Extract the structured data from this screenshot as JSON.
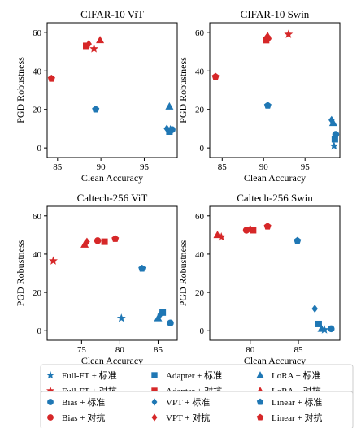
{
  "colors": {
    "standard": "#1f77b4",
    "adversarial": "#d62728"
  },
  "legend": {
    "box1": [
      {
        "label": "Full-FT + 标准",
        "marker": "star",
        "color": "#1f77b4"
      },
      {
        "label": "Adapter + 标准",
        "marker": "square",
        "color": "#1f77b4"
      },
      {
        "label": "LoRA + 标准",
        "marker": "triangle",
        "color": "#1f77b4"
      },
      {
        "label": "Full-FT + 对抗",
        "marker": "star",
        "color": "#d62728"
      },
      {
        "label": "Adapter + 对抗",
        "marker": "square",
        "color": "#d62728"
      },
      {
        "label": "LoRA + 对抗",
        "marker": "triangle",
        "color": "#d62728"
      }
    ],
    "box2": [
      {
        "label": "Bias + 标准",
        "marker": "circle",
        "color": "#1f77b4"
      },
      {
        "label": "VPT + 标准",
        "marker": "diamond",
        "color": "#1f77b4"
      },
      {
        "label": "Linear + 标准",
        "marker": "pentagon",
        "color": "#1f77b4"
      },
      {
        "label": "Bias + 对抗",
        "marker": "circle",
        "color": "#d62728"
      },
      {
        "label": "VPT + 对抗",
        "marker": "diamond",
        "color": "#d62728"
      },
      {
        "label": "Linear + 对抗",
        "marker": "pentagon",
        "color": "#d62728"
      }
    ]
  },
  "chart_data": [
    {
      "type": "scatter",
      "title": "CIFAR-10 ViT",
      "xlabel": "Clean Accuracy",
      "ylabel": "PGD Robustness",
      "xlim": [
        83.8,
        98.8
      ],
      "ylim": [
        -5,
        65
      ],
      "xticks": [
        85,
        90,
        95
      ],
      "yticks": [
        0,
        20,
        40,
        60
      ],
      "points": [
        {
          "method": "Linear",
          "training": "对抗",
          "marker": "pentagon",
          "color": "#d62728",
          "x": 84.3,
          "y": 36
        },
        {
          "method": "Adapter",
          "training": "对抗",
          "marker": "square",
          "color": "#d62728",
          "x": 88.3,
          "y": 53
        },
        {
          "method": "VPT",
          "training": "对抗",
          "marker": "diamond",
          "color": "#d62728",
          "x": 88.6,
          "y": 54
        },
        {
          "method": "Full-FT",
          "training": "对抗",
          "marker": "star",
          "color": "#d62728",
          "x": 89.2,
          "y": 51.5
        },
        {
          "method": "LoRA",
          "training": "对抗",
          "marker": "triangle",
          "color": "#d62728",
          "x": 89.9,
          "y": 56
        },
        {
          "method": "Linear",
          "training": "标准",
          "marker": "pentagon",
          "color": "#1f77b4",
          "x": 89.4,
          "y": 20
        },
        {
          "method": "LoRA",
          "training": "标准",
          "marker": "triangle",
          "color": "#1f77b4",
          "x": 97.9,
          "y": 21.5
        },
        {
          "method": "VPT",
          "training": "标准",
          "marker": "diamond",
          "color": "#1f77b4",
          "x": 97.6,
          "y": 10
        },
        {
          "method": "Adapter",
          "training": "标准",
          "marker": "square",
          "color": "#1f77b4",
          "x": 97.9,
          "y": 8.5
        },
        {
          "method": "Full-FT",
          "training": "标准",
          "marker": "star",
          "color": "#1f77b4",
          "x": 98.0,
          "y": 9.5
        },
        {
          "method": "Bias",
          "training": "标准",
          "marker": "circle",
          "color": "#1f77b4",
          "x": 98.2,
          "y": 9.5
        }
      ]
    },
    {
      "type": "scatter",
      "title": "CIFAR-10 Swin",
      "xlabel": "Clean Accuracy",
      "ylabel": "PGD Robustness",
      "xlim": [
        83.5,
        99.2
      ],
      "ylim": [
        -5,
        65
      ],
      "xticks": [
        85,
        90,
        95
      ],
      "yticks": [
        0,
        20,
        40,
        60
      ],
      "points": [
        {
          "method": "Linear",
          "training": "对抗",
          "marker": "pentagon",
          "color": "#d62728",
          "x": 84.2,
          "y": 37
        },
        {
          "method": "Adapter",
          "training": "对抗",
          "marker": "square",
          "color": "#d62728",
          "x": 90.3,
          "y": 56
        },
        {
          "method": "VPT",
          "training": "对抗",
          "marker": "diamond",
          "color": "#d62728",
          "x": 90.4,
          "y": 57.5
        },
        {
          "method": "Bias",
          "training": "对抗",
          "marker": "circle",
          "color": "#d62728",
          "x": 90.5,
          "y": 57
        },
        {
          "method": "LoRA",
          "training": "对抗",
          "marker": "triangle",
          "color": "#d62728",
          "x": 90.5,
          "y": 58
        },
        {
          "method": "Full-FT",
          "training": "对抗",
          "marker": "star",
          "color": "#d62728",
          "x": 93.0,
          "y": 59
        },
        {
          "method": "Linear",
          "training": "标准",
          "marker": "pentagon",
          "color": "#1f77b4",
          "x": 90.5,
          "y": 22
        },
        {
          "method": "VPT",
          "training": "标准",
          "marker": "diamond",
          "color": "#1f77b4",
          "x": 98.2,
          "y": 14.5
        },
        {
          "method": "LoRA",
          "training": "标准",
          "marker": "triangle",
          "color": "#1f77b4",
          "x": 98.4,
          "y": 13
        },
        {
          "method": "Bias",
          "training": "标准",
          "marker": "circle",
          "color": "#1f77b4",
          "x": 98.7,
          "y": 7
        },
        {
          "method": "Adapter",
          "training": "标准",
          "marker": "square",
          "color": "#1f77b4",
          "x": 98.6,
          "y": 4.5
        },
        {
          "method": "Full-FT",
          "training": "标准",
          "marker": "star",
          "color": "#1f77b4",
          "x": 98.5,
          "y": 1
        }
      ]
    },
    {
      "type": "scatter",
      "title": "Caltech-256 ViT",
      "xlabel": "Clean Accuracy",
      "ylabel": "PGD Robustness",
      "xlim": [
        70.5,
        87.5
      ],
      "ylim": [
        -5,
        65
      ],
      "xticks": [
        75,
        80,
        85
      ],
      "yticks": [
        0,
        20,
        40,
        60
      ],
      "points": [
        {
          "method": "Full-FT",
          "training": "对抗",
          "marker": "star",
          "color": "#d62728",
          "x": 71.3,
          "y": 36.5
        },
        {
          "method": "LoRA",
          "training": "对抗",
          "marker": "triangle",
          "color": "#d62728",
          "x": 75.4,
          "y": 45
        },
        {
          "method": "VPT",
          "training": "对抗",
          "marker": "diamond",
          "color": "#d62728",
          "x": 75.7,
          "y": 46.5
        },
        {
          "method": "Bias",
          "training": "对抗",
          "marker": "circle",
          "color": "#d62728",
          "x": 77.1,
          "y": 47
        },
        {
          "method": "Adapter",
          "training": "对抗",
          "marker": "square",
          "color": "#d62728",
          "x": 78.0,
          "y": 46.5
        },
        {
          "method": "Linear",
          "training": "对抗",
          "marker": "pentagon",
          "color": "#d62728",
          "x": 79.4,
          "y": 48
        },
        {
          "method": "Linear",
          "training": "标准",
          "marker": "pentagon",
          "color": "#1f77b4",
          "x": 82.9,
          "y": 32.5
        },
        {
          "method": "Full-FT",
          "training": "标准",
          "marker": "star",
          "color": "#1f77b4",
          "x": 80.2,
          "y": 6.5
        },
        {
          "method": "LoRA",
          "training": "标准",
          "marker": "triangle",
          "color": "#1f77b4",
          "x": 85.0,
          "y": 6.5
        },
        {
          "method": "VPT",
          "training": "标准",
          "marker": "diamond",
          "color": "#1f77b4",
          "x": 85.3,
          "y": 8.5
        },
        {
          "method": "Adapter",
          "training": "标准",
          "marker": "square",
          "color": "#1f77b4",
          "x": 85.6,
          "y": 9.5
        },
        {
          "method": "Bias",
          "training": "标准",
          "marker": "circle",
          "color": "#1f77b4",
          "x": 86.6,
          "y": 4
        }
      ]
    },
    {
      "type": "scatter",
      "title": "Caltech-256 Swin",
      "xlabel": "Clean Accuracy",
      "ylabel": "PGD Robustness",
      "xlim": [
        75.8,
        89.3
      ],
      "ylim": [
        -5,
        65
      ],
      "xticks": [
        80,
        85
      ],
      "yticks": [
        0,
        20,
        40,
        60
      ],
      "points": [
        {
          "method": "LoRA",
          "training": "对抗",
          "marker": "triangle",
          "color": "#d62728",
          "x": 76.6,
          "y": 50
        },
        {
          "method": "Full-FT",
          "training": "对抗",
          "marker": "star",
          "color": "#d62728",
          "x": 77.0,
          "y": 49
        },
        {
          "method": "Bias",
          "training": "对抗",
          "marker": "circle",
          "color": "#d62728",
          "x": 79.6,
          "y": 52.5
        },
        {
          "method": "VPT",
          "training": "对抗",
          "marker": "diamond",
          "color": "#d62728",
          "x": 80.0,
          "y": 53
        },
        {
          "method": "Adapter",
          "training": "对抗",
          "marker": "square",
          "color": "#d62728",
          "x": 80.3,
          "y": 52.5
        },
        {
          "method": "Linear",
          "training": "对抗",
          "marker": "pentagon",
          "color": "#d62728",
          "x": 81.8,
          "y": 54.5
        },
        {
          "method": "Linear",
          "training": "标准",
          "marker": "pentagon",
          "color": "#1f77b4",
          "x": 84.9,
          "y": 47
        },
        {
          "method": "VPT",
          "training": "标准",
          "marker": "diamond",
          "color": "#1f77b4",
          "x": 86.7,
          "y": 11.5
        },
        {
          "method": "Adapter",
          "training": "标准",
          "marker": "square",
          "color": "#1f77b4",
          "x": 87.1,
          "y": 3.5
        },
        {
          "method": "LoRA",
          "training": "标准",
          "marker": "triangle",
          "color": "#1f77b4",
          "x": 87.4,
          "y": 1
        },
        {
          "method": "Full-FT",
          "training": "标准",
          "marker": "star",
          "color": "#1f77b4",
          "x": 87.7,
          "y": 0.5
        },
        {
          "method": "Bias",
          "training": "标准",
          "marker": "circle",
          "color": "#1f77b4",
          "x": 88.4,
          "y": 1
        }
      ]
    }
  ]
}
